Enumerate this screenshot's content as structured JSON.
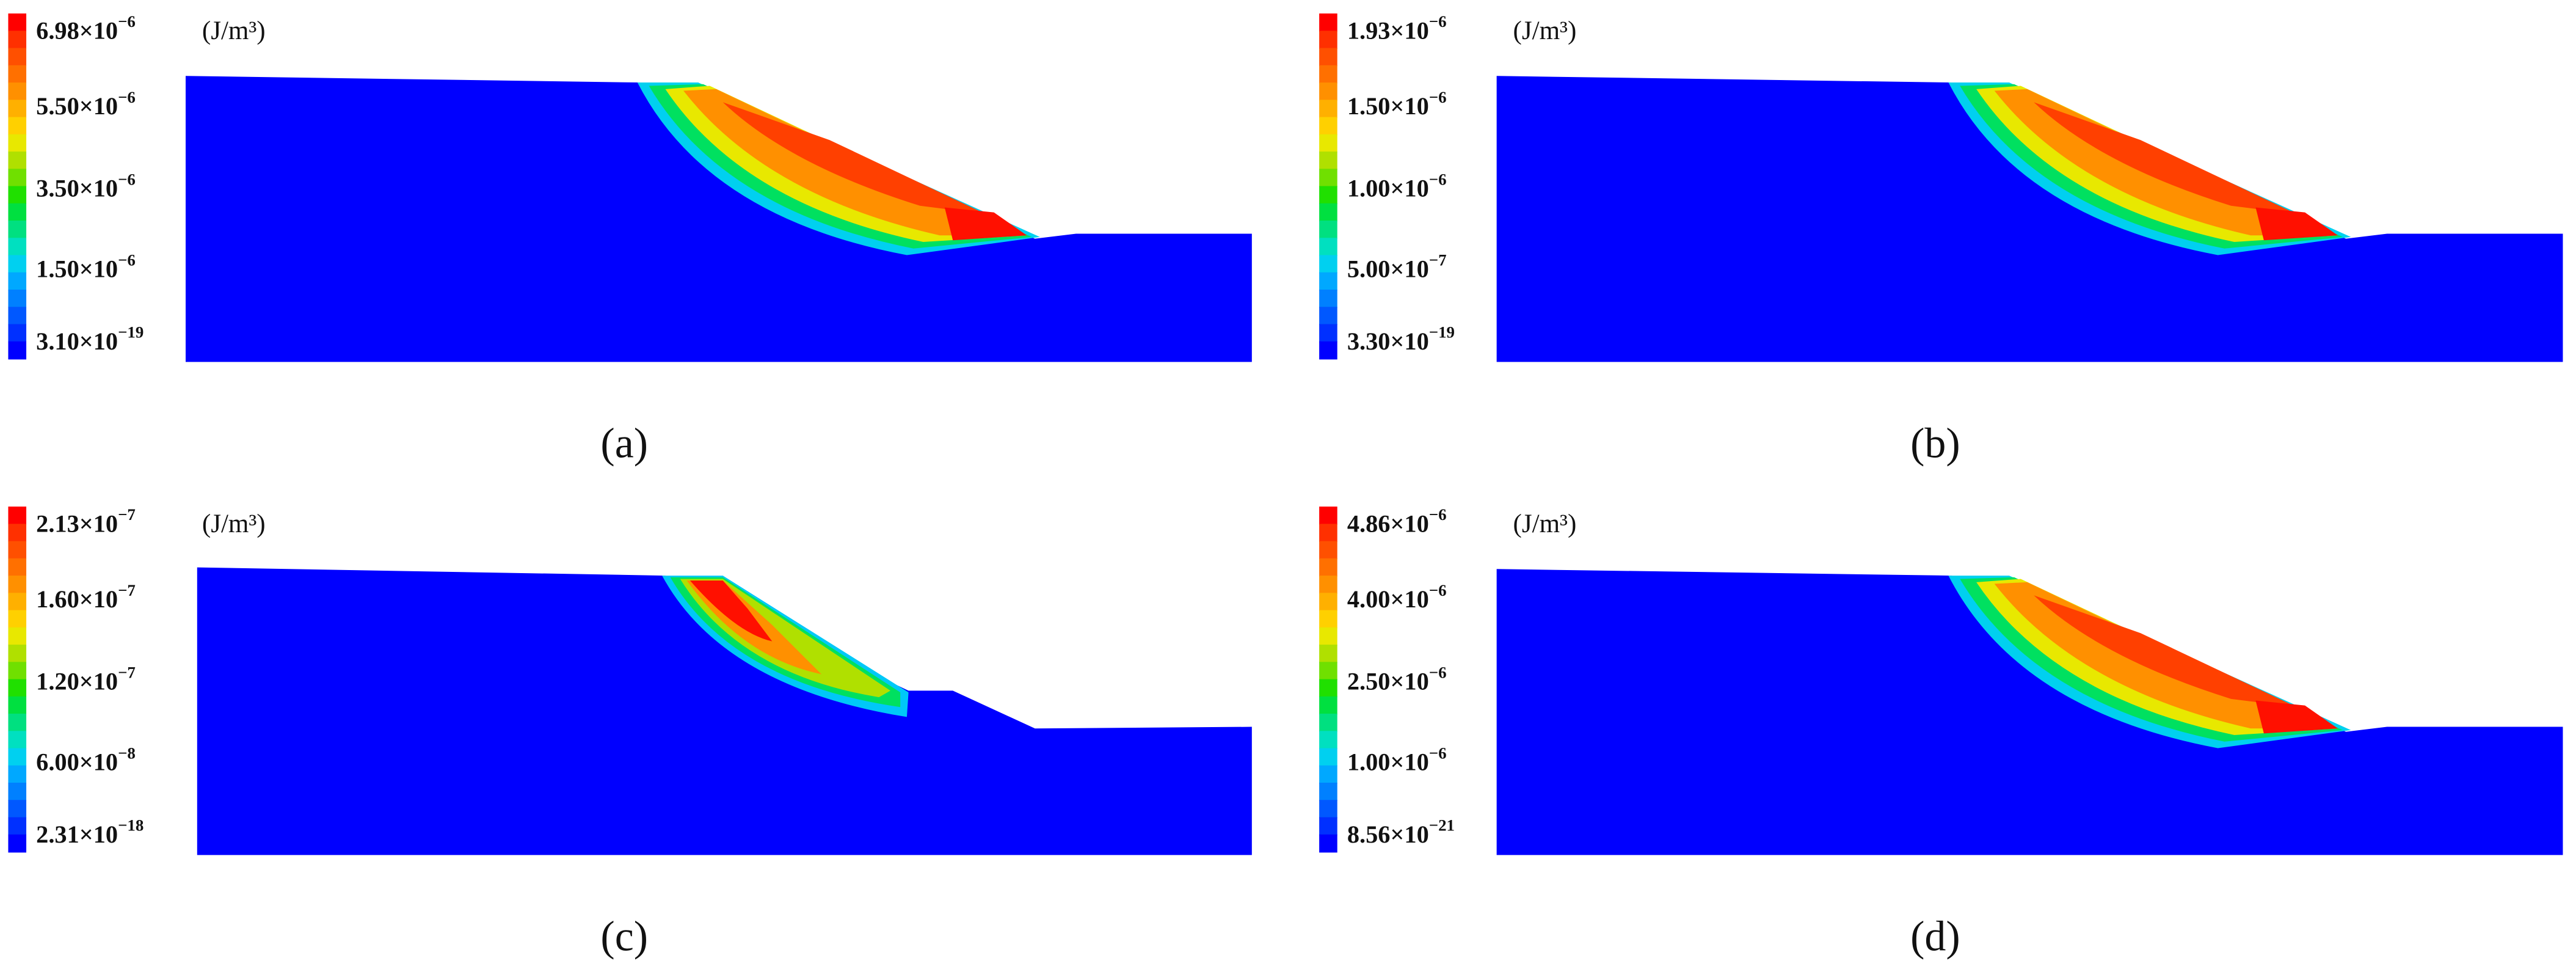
{
  "panels": [
    {
      "label": "(a)",
      "unit": "(J/m³)",
      "legend": [
        {
          "base": "6.98×10",
          "exp": "−6"
        },
        {
          "base": "5.50×10",
          "exp": "−6"
        },
        {
          "base": "3.50×10",
          "exp": "−6"
        },
        {
          "base": "1.50×10",
          "exp": "−6"
        },
        {
          "base": "3.10×10",
          "exp": "−19"
        }
      ]
    },
    {
      "label": "(b)",
      "unit": "(J/m³)",
      "legend": [
        {
          "base": "1.93×10",
          "exp": "−6"
        },
        {
          "base": "1.50×10",
          "exp": "−6"
        },
        {
          "base": "1.00×10",
          "exp": "−6"
        },
        {
          "base": "5.00×10",
          "exp": "−7"
        },
        {
          "base": "3.30×10",
          "exp": "−19"
        }
      ]
    },
    {
      "label": "(c)",
      "unit": "(J/m³)",
      "legend": [
        {
          "base": "2.13×10",
          "exp": "−7"
        },
        {
          "base": "1.60×10",
          "exp": "−7"
        },
        {
          "base": "1.20×10",
          "exp": "−7"
        },
        {
          "base": "6.00×10",
          "exp": "−8"
        },
        {
          "base": "2.31×10",
          "exp": "−18"
        }
      ]
    },
    {
      "label": "(d)",
      "unit": "(J/m³)",
      "legend": [
        {
          "base": "4.86×10",
          "exp": "−6"
        },
        {
          "base": "4.00×10",
          "exp": "−6"
        },
        {
          "base": "2.50×10",
          "exp": "−6"
        },
        {
          "base": "1.00×10",
          "exp": "−6"
        },
        {
          "base": "8.56×10",
          "exp": "−21"
        }
      ]
    }
  ]
}
